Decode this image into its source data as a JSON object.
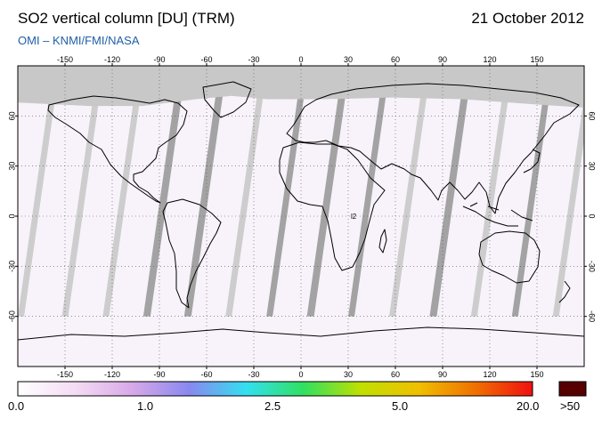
{
  "header": {
    "title": "SO2 vertical column [DU] (TRM)",
    "date": "21 October 2012",
    "source": "OMI  –  KNMI/FMI/NASA"
  },
  "map": {
    "projection": "equirectangular",
    "lon_range": [
      -180,
      180
    ],
    "lat_range": [
      -90,
      90
    ],
    "lon_ticks": [
      "-150",
      "-120",
      "-90",
      "-60",
      "-30",
      "0",
      "30",
      "60",
      "90",
      "120",
      "150"
    ],
    "lat_ticks": [
      "60",
      "30",
      "0",
      "-30",
      "-60"
    ],
    "grid": true,
    "colors": {
      "no_data": "#c8c8c8",
      "swath_gap_dark": "#a3a3a3",
      "swath_gap_light": "#cdcdcd",
      "background": "#f8f2fa",
      "coastline": "#000000"
    },
    "annotation": "l2"
  },
  "colorbar": {
    "labels": [
      "0.0",
      "1.0",
      "2.5",
      "5.0",
      "20.0",
      ">50"
    ],
    "stops": [
      "#ffffff",
      "#f4dcf4",
      "#d8a8e8",
      "#8888f0",
      "#33e0f0",
      "#30e060",
      "#c0e000",
      "#f0c000",
      "#f07000",
      "#f01010"
    ],
    "overflow_color": "#560000"
  }
}
